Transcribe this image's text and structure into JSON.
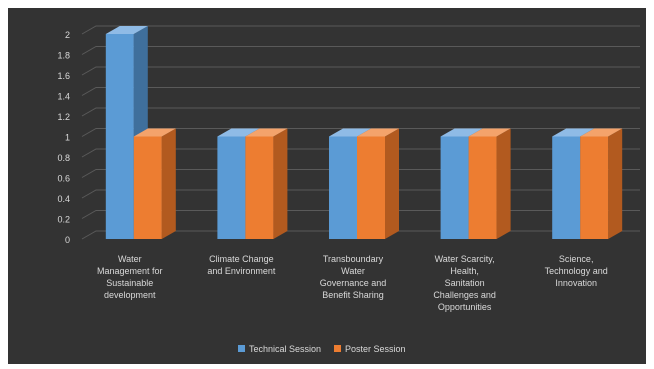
{
  "chart_data": {
    "type": "bar",
    "categories": [
      [
        "Water",
        "Management for",
        "Sustainable",
        "development"
      ],
      [
        "Climate Change",
        "and Environment"
      ],
      [
        "Transboundary",
        "Water",
        "Governance and",
        "Benefit Sharing"
      ],
      [
        "Water Scarcity,",
        "Health,",
        "Sanitation",
        "Challenges and",
        "Opportunities"
      ],
      [
        "Science,",
        "Technology and",
        "Innovation"
      ]
    ],
    "series": [
      {
        "name": "Technical Session",
        "values": [
          2,
          1,
          1,
          1,
          1
        ],
        "color": "#5b9bd5",
        "side_color": "#3f6f9c",
        "top_color": "#8fbbe6"
      },
      {
        "name": "Poster Session",
        "values": [
          1,
          1,
          1,
          1,
          1
        ],
        "color": "#ed7d31",
        "side_color": "#b25a1f",
        "top_color": "#f4a36b"
      }
    ],
    "y_ticks": [
      "0",
      "0.2",
      "0.4",
      "0.6",
      "0.8",
      "1",
      "1.2",
      "1.4",
      "1.6",
      "1.8",
      "2"
    ],
    "ylim": [
      0,
      2
    ],
    "grid": true,
    "legend_position": "bottom",
    "background_color": "#333333",
    "text_color": "#d9d9d9",
    "grid_color": "#5a5a5a"
  }
}
